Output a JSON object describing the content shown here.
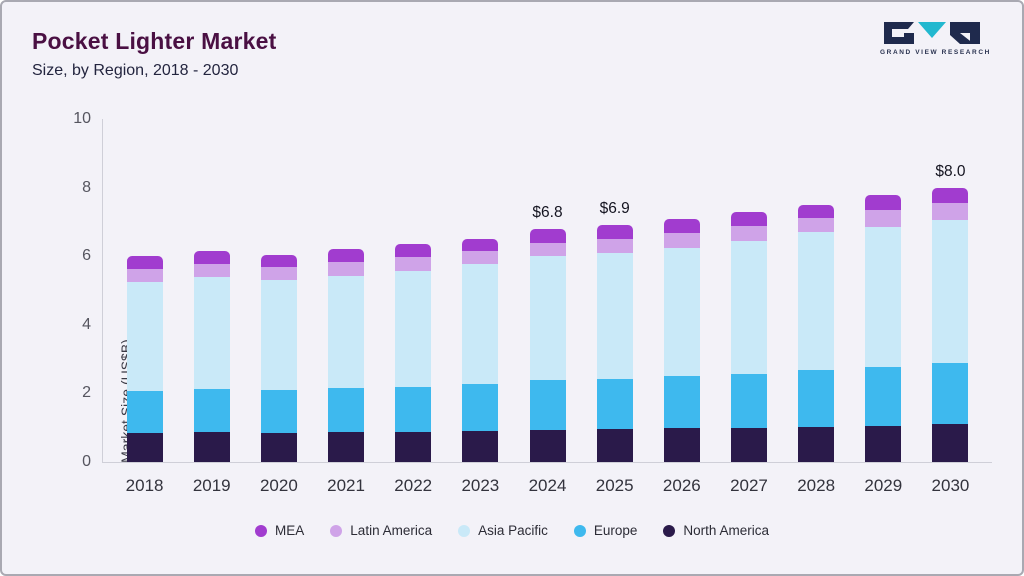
{
  "header": {
    "title": "Pocket Lighter Market",
    "subtitle": "Size, by Region, 2018 - 2030",
    "logo_text": "GRAND VIEW RESEARCH"
  },
  "colors": {
    "background": "#f3f2f8",
    "title": "#4a1043",
    "logo_dark": "#1f2a4d",
    "logo_teal": "#22b8cf"
  },
  "chart_data": {
    "type": "bar",
    "variant": "stacked",
    "title": "Pocket Lighter Market",
    "subtitle": "Size, by Region, 2018 - 2030",
    "xlabel": "",
    "ylabel": "Market Size (US$B)",
    "ylim": [
      0,
      10
    ],
    "yticks": [
      0,
      2,
      4,
      6,
      8,
      10
    ],
    "grid": false,
    "legend_position": "bottom",
    "categories": [
      "2018",
      "2019",
      "2020",
      "2021",
      "2022",
      "2023",
      "2024",
      "2025",
      "2026",
      "2027",
      "2028",
      "2029",
      "2030"
    ],
    "series": [
      {
        "name": "North America",
        "color": "#2a1a4a",
        "values": [
          0.85,
          0.87,
          0.85,
          0.87,
          0.88,
          0.9,
          0.93,
          0.95,
          0.98,
          1.0,
          1.03,
          1.06,
          1.1
        ]
      },
      {
        "name": "Europe",
        "color": "#3eb9ee",
        "values": [
          1.23,
          1.26,
          1.25,
          1.28,
          1.32,
          1.38,
          1.45,
          1.48,
          1.53,
          1.58,
          1.64,
          1.72,
          1.78
        ]
      },
      {
        "name": "Asia Pacific",
        "color": "#c9e9f8",
        "values": [
          3.17,
          3.27,
          3.2,
          3.28,
          3.38,
          3.5,
          3.62,
          3.67,
          3.74,
          3.87,
          4.03,
          4.07,
          4.17
        ]
      },
      {
        "name": "Latin America",
        "color": "#cfa3e8",
        "values": [
          0.38,
          0.38,
          0.38,
          0.39,
          0.4,
          0.37,
          0.4,
          0.4,
          0.43,
          0.43,
          0.42,
          0.5,
          0.5
        ]
      },
      {
        "name": "MEA",
        "color": "#a13ccf",
        "values": [
          0.37,
          0.37,
          0.37,
          0.38,
          0.37,
          0.35,
          0.4,
          0.4,
          0.42,
          0.42,
          0.38,
          0.45,
          0.45
        ]
      }
    ],
    "totals": [
      6.0,
      6.15,
      6.05,
      6.2,
      6.35,
      6.5,
      6.8,
      6.9,
      7.1,
      7.3,
      7.5,
      7.8,
      8.0
    ],
    "annotations": {
      "2024": "$6.8",
      "2025": "$6.9",
      "2030": "$8.0"
    },
    "legend_order": [
      "MEA",
      "Latin America",
      "Asia Pacific",
      "Europe",
      "North America"
    ]
  }
}
